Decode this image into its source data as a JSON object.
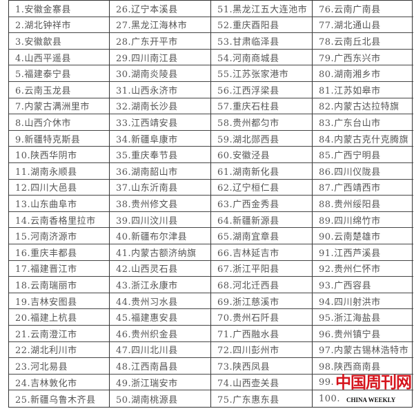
{
  "items": [
    "1.安徽金寨县",
    "2.湖北钟祥市",
    "3.安徽歙县",
    "4.山西平遥县",
    "5.福建泰宁县",
    "6.云南玉龙县",
    "7.内蒙古满洲里市",
    "8.山西介休市",
    "9.新疆特克斯县",
    "10.陕西华阴市",
    "11.湖南永顺县",
    "12.四川大邑县",
    "13.山东曲阜市",
    "14.云南香格里拉市",
    "15.河南济源市",
    "16.重庆丰都县",
    "17.福建晋江市",
    "18.云南瑞丽市",
    "19.吉林安图县",
    "20.福建上杭县",
    "21.云南澄江市",
    "22.湖北利川市",
    "23.河北易县",
    "24.吉林敦化市",
    "25.新疆乌鲁木齐县",
    "26.辽宁本溪县",
    "27.黑龙江海林市",
    "28.广东开平市",
    "29.四川南江县",
    "30.湖南炎陵县",
    "31.山西永济市",
    "32.湖南长沙县",
    "33.江西靖安县",
    "34.新疆阜康市",
    "35.重庆奉节县",
    "36.湖南韶山市",
    "37.山东沂南县",
    "38.贵州修文县",
    "39.四川汶川县",
    "40.新疆布尔津县",
    "41.内蒙古额济纳旗",
    "42.山西灵石县",
    "43.浙江永康市",
    "44.贵州习水县",
    "45.福建惠安县",
    "46.贵州织金县",
    "47.四川北川县",
    "48.江西南昌县",
    "49.浙江瑞安市",
    "50.湖南桃源县",
    "51.黑龙江五大连池市",
    "52.重庆酉阳县",
    "53.甘肃临泽县",
    "54.河南商城县",
    "55.江苏张家港市",
    "56.江西浮梁县",
    "57.重庆石柱县",
    "58.贵州都匀市",
    "59.湖北郧西县",
    "60.安徽泾县",
    "61.湖南新化县",
    "62.辽宁桓仁县",
    "63.广西金秀县",
    "64.新疆新源县",
    "65.湖南宜章县",
    "66.吉林延吉市",
    "67.浙江平阳县",
    "68.河北迁西县",
    "69.浙江慈溪市",
    "70.贵州石阡县",
    "71.广西融水县",
    "72.四川彭州市",
    "73.陕西凤县",
    "74.山西壶关县",
    "75.广东惠东县",
    "76.云南广南县",
    "77.湖北通山县",
    "78.云南丘北县",
    "79.广西东兴市",
    "80.湖南湘乡市",
    "81.江苏如皋市",
    "82.内蒙古达拉特旗",
    "83.广东台山市",
    "84.内蒙古克什克腾旗",
    "85.广西宁明县",
    "86.四川仪陇县",
    "87.广西靖西市",
    "88.贵州绥阳县",
    "89.四川绵竹市",
    "90.云南楚雄市",
    "91.江西芦溪县",
    "92.贵州仁怀市",
    "93.广西容县",
    "94.四川射洪市",
    "95.浙江海盐县",
    "96.贵州镇宁县",
    "97.内蒙古锡林浩特市",
    "98.陕西商南县",
    "99.",
    "100."
  ],
  "watermark": {
    "cn": "中国周刊网",
    "en": "CHINA WEEKLY",
    "color": "#d5141c"
  }
}
